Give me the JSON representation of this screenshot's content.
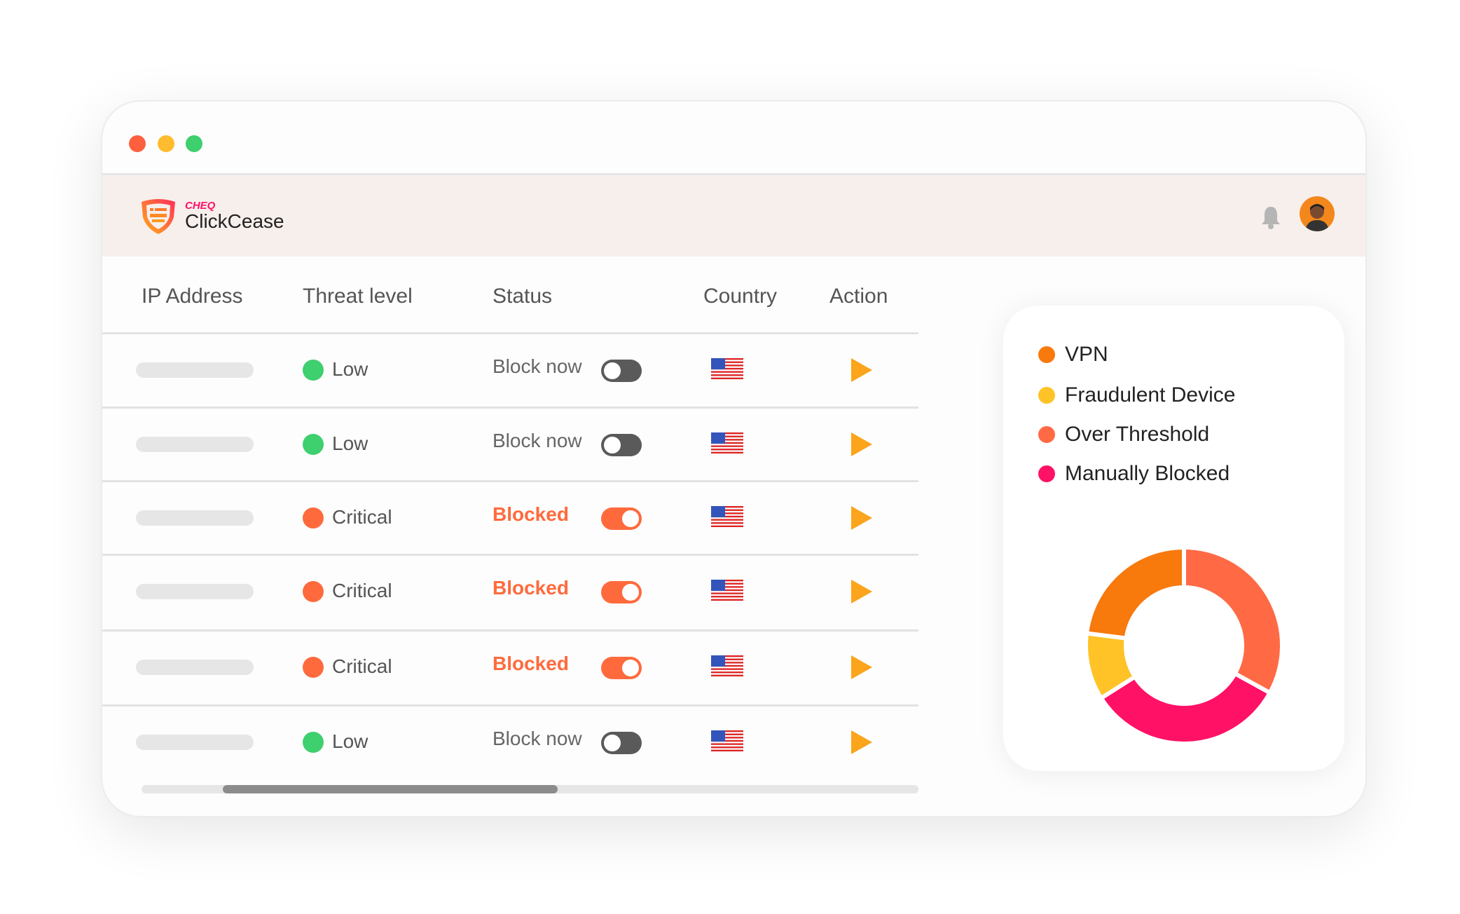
{
  "app": {
    "brand_top": "CHEQ",
    "brand": "ClickCease"
  },
  "table": {
    "headers": [
      "IP Address",
      "Threat level",
      "Status",
      "Country",
      "Action"
    ],
    "rows": [
      {
        "threat": "Low",
        "status": "Block now",
        "blocked": false,
        "country": "US"
      },
      {
        "threat": "Low",
        "status": "Block now",
        "blocked": false,
        "country": "US"
      },
      {
        "threat": "Critical",
        "status": "Blocked",
        "blocked": true,
        "country": "US"
      },
      {
        "threat": "Critical",
        "status": "Blocked",
        "blocked": true,
        "country": "US"
      },
      {
        "threat": "Critical",
        "status": "Blocked",
        "blocked": true,
        "country": "US"
      },
      {
        "threat": "Low",
        "status": "Block now",
        "blocked": false,
        "country": "US"
      }
    ]
  },
  "colors": {
    "low": "#3ecf6e",
    "critical": "#ff6a3d",
    "toggle_off": "#5a5a5a",
    "toggle_on": "#ff6a3d"
  },
  "chart_data": {
    "type": "pie",
    "donut": true,
    "legend": [
      "VPN",
      "Fraudulent Device",
      "Over Threshold",
      "Manually Blocked"
    ],
    "series": [
      {
        "name": "Over Threshold",
        "value": 33,
        "color": "#ff6a45"
      },
      {
        "name": "Manually Blocked",
        "value": 33,
        "color": "#ff1166"
      },
      {
        "name": "Fraudulent Device",
        "value": 11,
        "color": "#ffc327"
      },
      {
        "name": "VPN",
        "value": 23,
        "color": "#f8790c"
      }
    ],
    "legend_colors": [
      "#f8790c",
      "#ffc327",
      "#ff6a45",
      "#ff1166"
    ]
  }
}
